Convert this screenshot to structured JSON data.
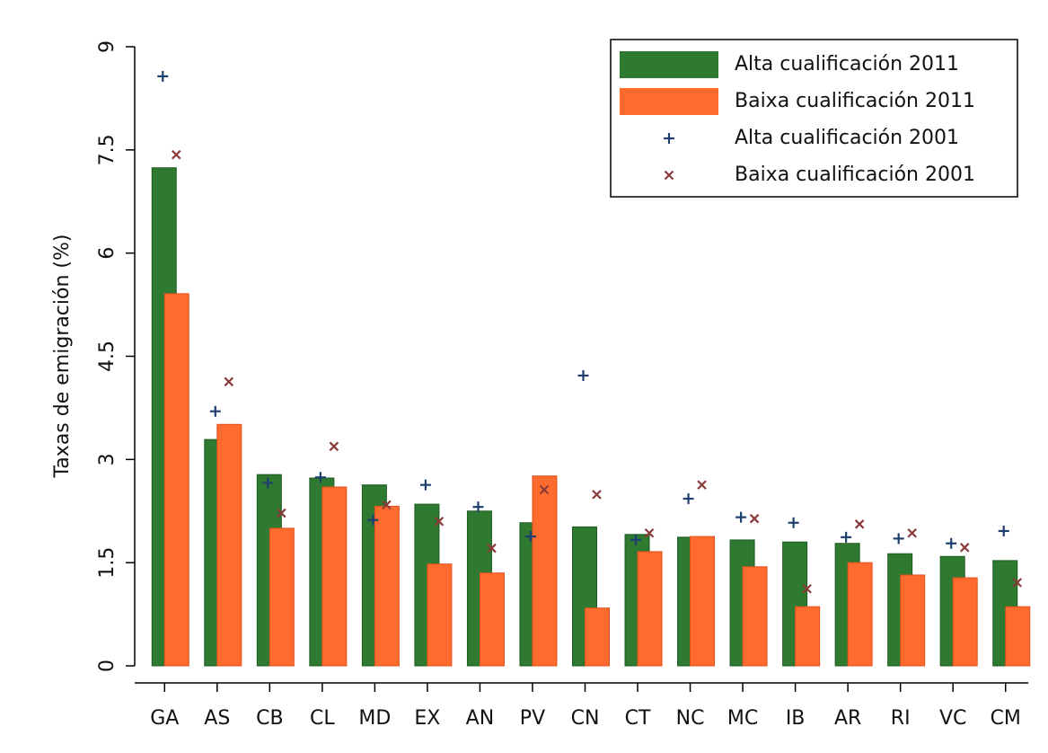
{
  "chart_data": {
    "type": "bar",
    "y_label": "Taxas de emigración (%)",
    "categories": [
      "GA",
      "AS",
      "CB",
      "CL",
      "MD",
      "EX",
      "AN",
      "PV",
      "CN",
      "CT",
      "NC",
      "MC",
      "IB",
      "AR",
      "RI",
      "VC",
      "CM"
    ],
    "series": [
      {
        "name": "Alta cualificación 2011",
        "kind": "bar",
        "color": "#2e7a31",
        "values": [
          7.24,
          3.29,
          2.78,
          2.73,
          2.63,
          2.35,
          2.25,
          2.08,
          2.02,
          1.91,
          1.87,
          1.83,
          1.8,
          1.78,
          1.63,
          1.59,
          1.53
        ]
      },
      {
        "name": "Baixa cualificación 2011",
        "kind": "bar",
        "color": "#ff6a2f",
        "values": [
          5.41,
          3.51,
          2.0,
          2.6,
          2.32,
          1.48,
          1.35,
          2.76,
          0.84,
          1.66,
          1.88,
          1.44,
          0.86,
          1.5,
          1.32,
          1.28,
          0.86
        ]
      },
      {
        "name": "Alta cualificación 2001",
        "kind": "plus",
        "color": "#1f3f70",
        "values": [
          8.57,
          3.7,
          2.66,
          2.74,
          2.12,
          2.63,
          2.31,
          1.88,
          4.22,
          1.83,
          2.43,
          2.16,
          2.08,
          1.87,
          1.85,
          1.78,
          1.96
        ]
      },
      {
        "name": "Baixa cualificación 2001",
        "kind": "cross",
        "color": "#8b3a3a",
        "values": [
          7.43,
          4.13,
          2.22,
          3.19,
          2.34,
          2.1,
          1.71,
          2.56,
          2.49,
          1.93,
          2.63,
          2.14,
          1.12,
          2.06,
          1.93,
          1.72,
          1.21
        ]
      }
    ],
    "ylim": [
      0,
      9
    ],
    "yticks": [
      0,
      1.5,
      3,
      4.5,
      6,
      7.5,
      9
    ],
    "legend": "top-right"
  }
}
